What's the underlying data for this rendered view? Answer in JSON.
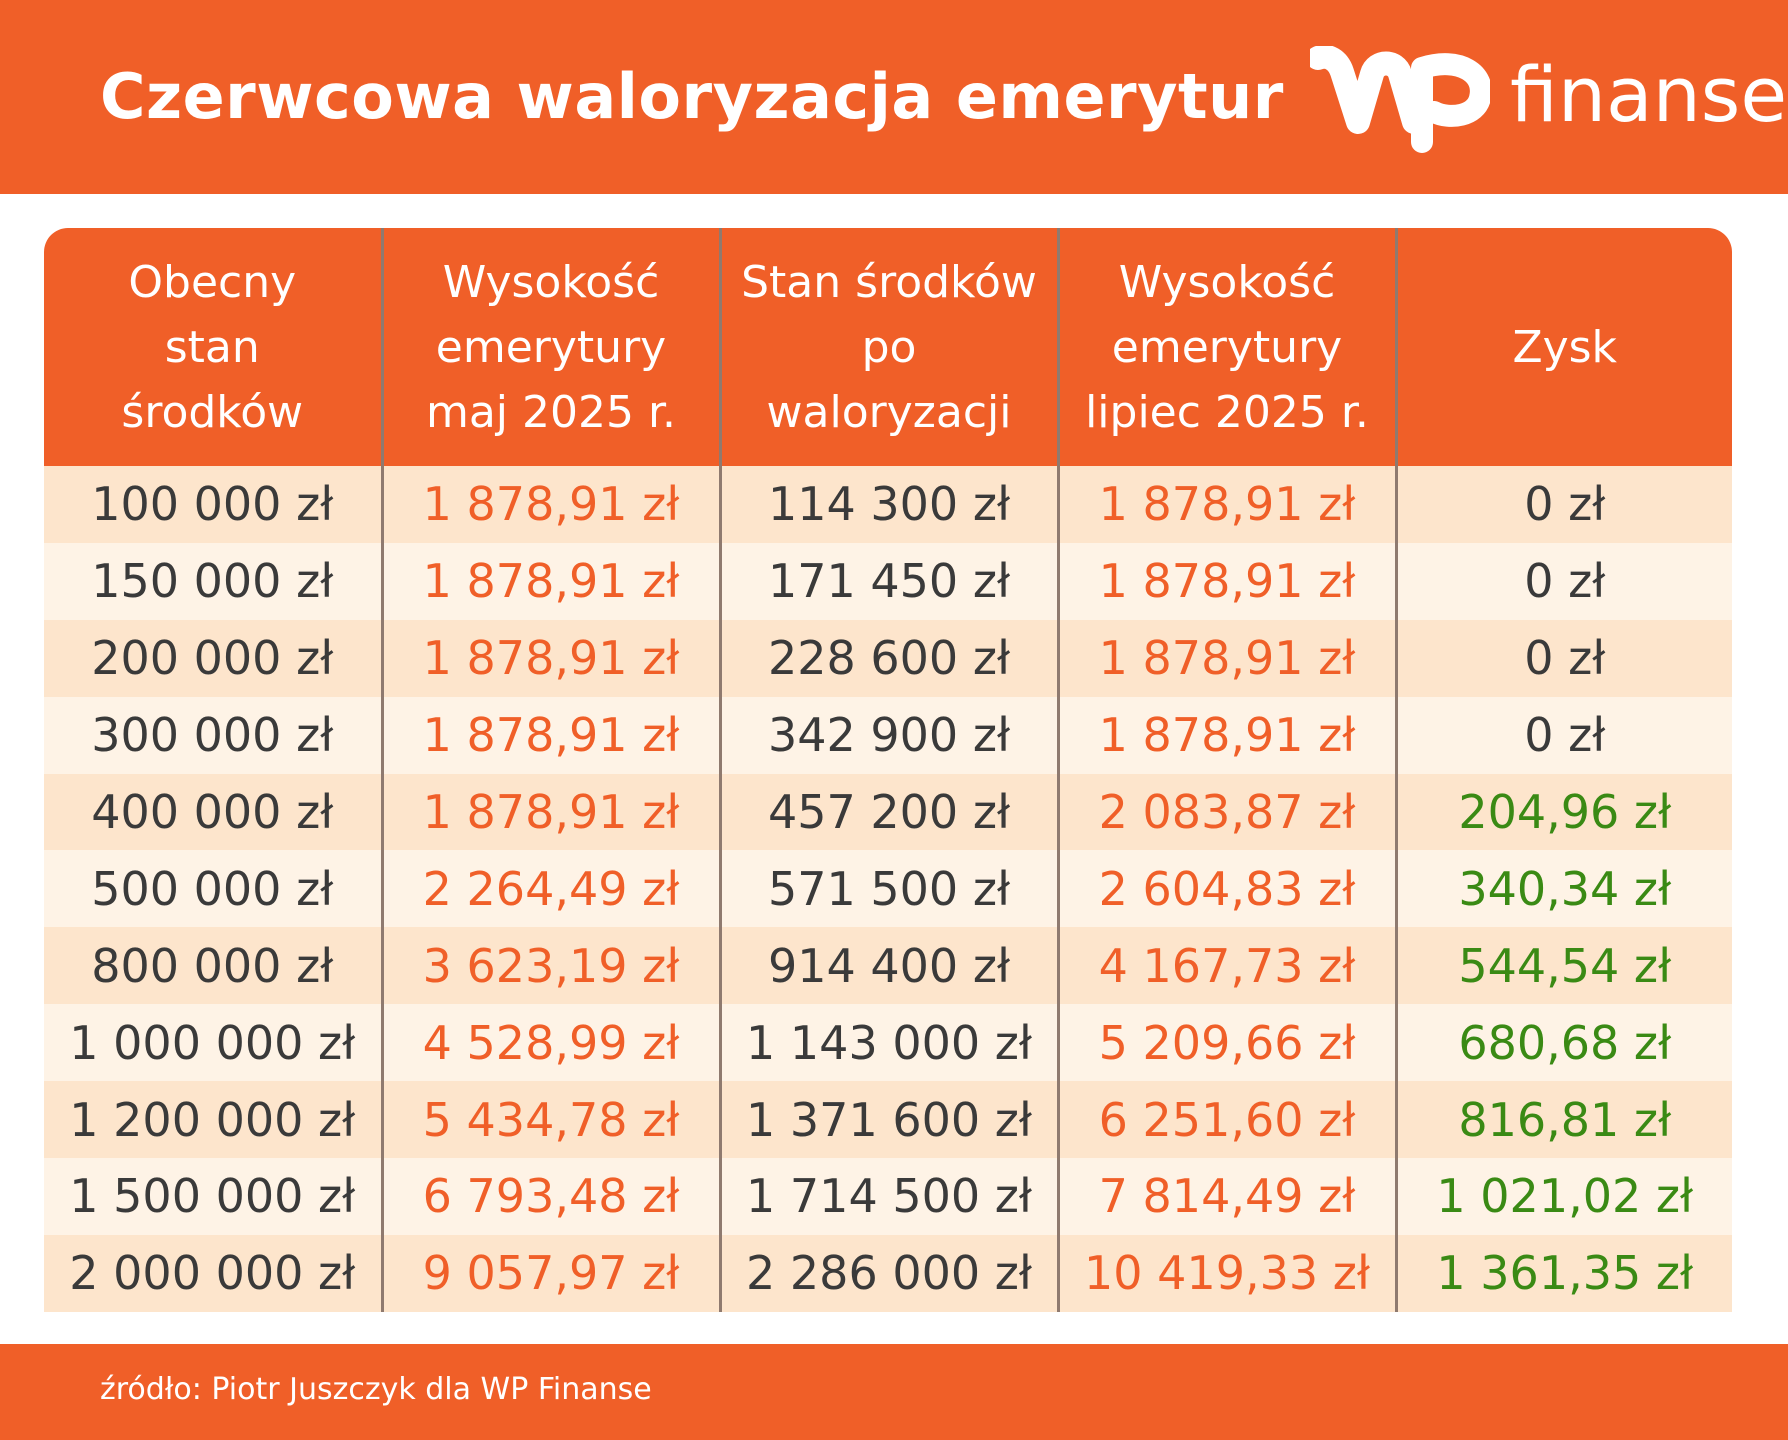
{
  "header": {
    "title": "Czerwcowa waloryzacja emerytur",
    "logo_text": "finanse"
  },
  "colors": {
    "brand_orange": "#f05f28",
    "row_odd": "#fde5cc",
    "row_even": "#fef3e6",
    "value_orange": "#f05f28",
    "value_green": "#3a8a14",
    "value_dark": "#3a3a3a"
  },
  "table": {
    "columns": [
      [
        "Obecny",
        "stan",
        "środków"
      ],
      [
        "Wysokość",
        "emerytury",
        "maj 2025 r."
      ],
      [
        "Stan środków",
        "po",
        "waloryzacji"
      ],
      [
        "Wysokość",
        "emerytury",
        "lipiec 2025 r."
      ],
      [
        "Zysk"
      ]
    ],
    "rows": [
      [
        "100 000 zł",
        "1 878,91 zł",
        "114 300 zł",
        "1 878,91 zł",
        "0 zł"
      ],
      [
        "150 000 zł",
        "1 878,91 zł",
        "171 450 zł",
        "1 878,91 zł",
        "0 zł"
      ],
      [
        "200 000 zł",
        "1 878,91 zł",
        "228 600 zł",
        "1 878,91 zł",
        "0 zł"
      ],
      [
        "300 000 zł",
        "1 878,91 zł",
        "342 900 zł",
        "1 878,91 zł",
        "0 zł"
      ],
      [
        "400 000 zł",
        "1 878,91 zł",
        "457 200 zł",
        "2 083,87 zł",
        "204,96 zł"
      ],
      [
        "500 000 zł",
        "2 264,49 zł",
        "571 500 zł",
        "2 604,83 zł",
        "340,34 zł"
      ],
      [
        "800 000 zł",
        "3 623,19 zł",
        "914 400 zł",
        "4 167,73 zł",
        "544,54 zł"
      ],
      [
        "1 000 000 zł",
        "4 528,99 zł",
        "1 143 000 zł",
        "5 209,66 zł",
        "680,68 zł"
      ],
      [
        "1 200 000 zł",
        "5 434,78 zł",
        "1 371 600 zł",
        "6 251,60 zł",
        "816,81 zł"
      ],
      [
        "1 500 000 zł",
        "6 793,48 zł",
        "1 714 500 zł",
        "7 814,49 zł",
        "1 021,02 zł"
      ],
      [
        "2 000 000 zł",
        "9 057,97 zł",
        "2 286 000 zł",
        "10 419,33 zł",
        "1 361,35 zł"
      ]
    ]
  },
  "footer": {
    "source": "źródło: Piotr Juszczyk dla WP Finanse"
  }
}
